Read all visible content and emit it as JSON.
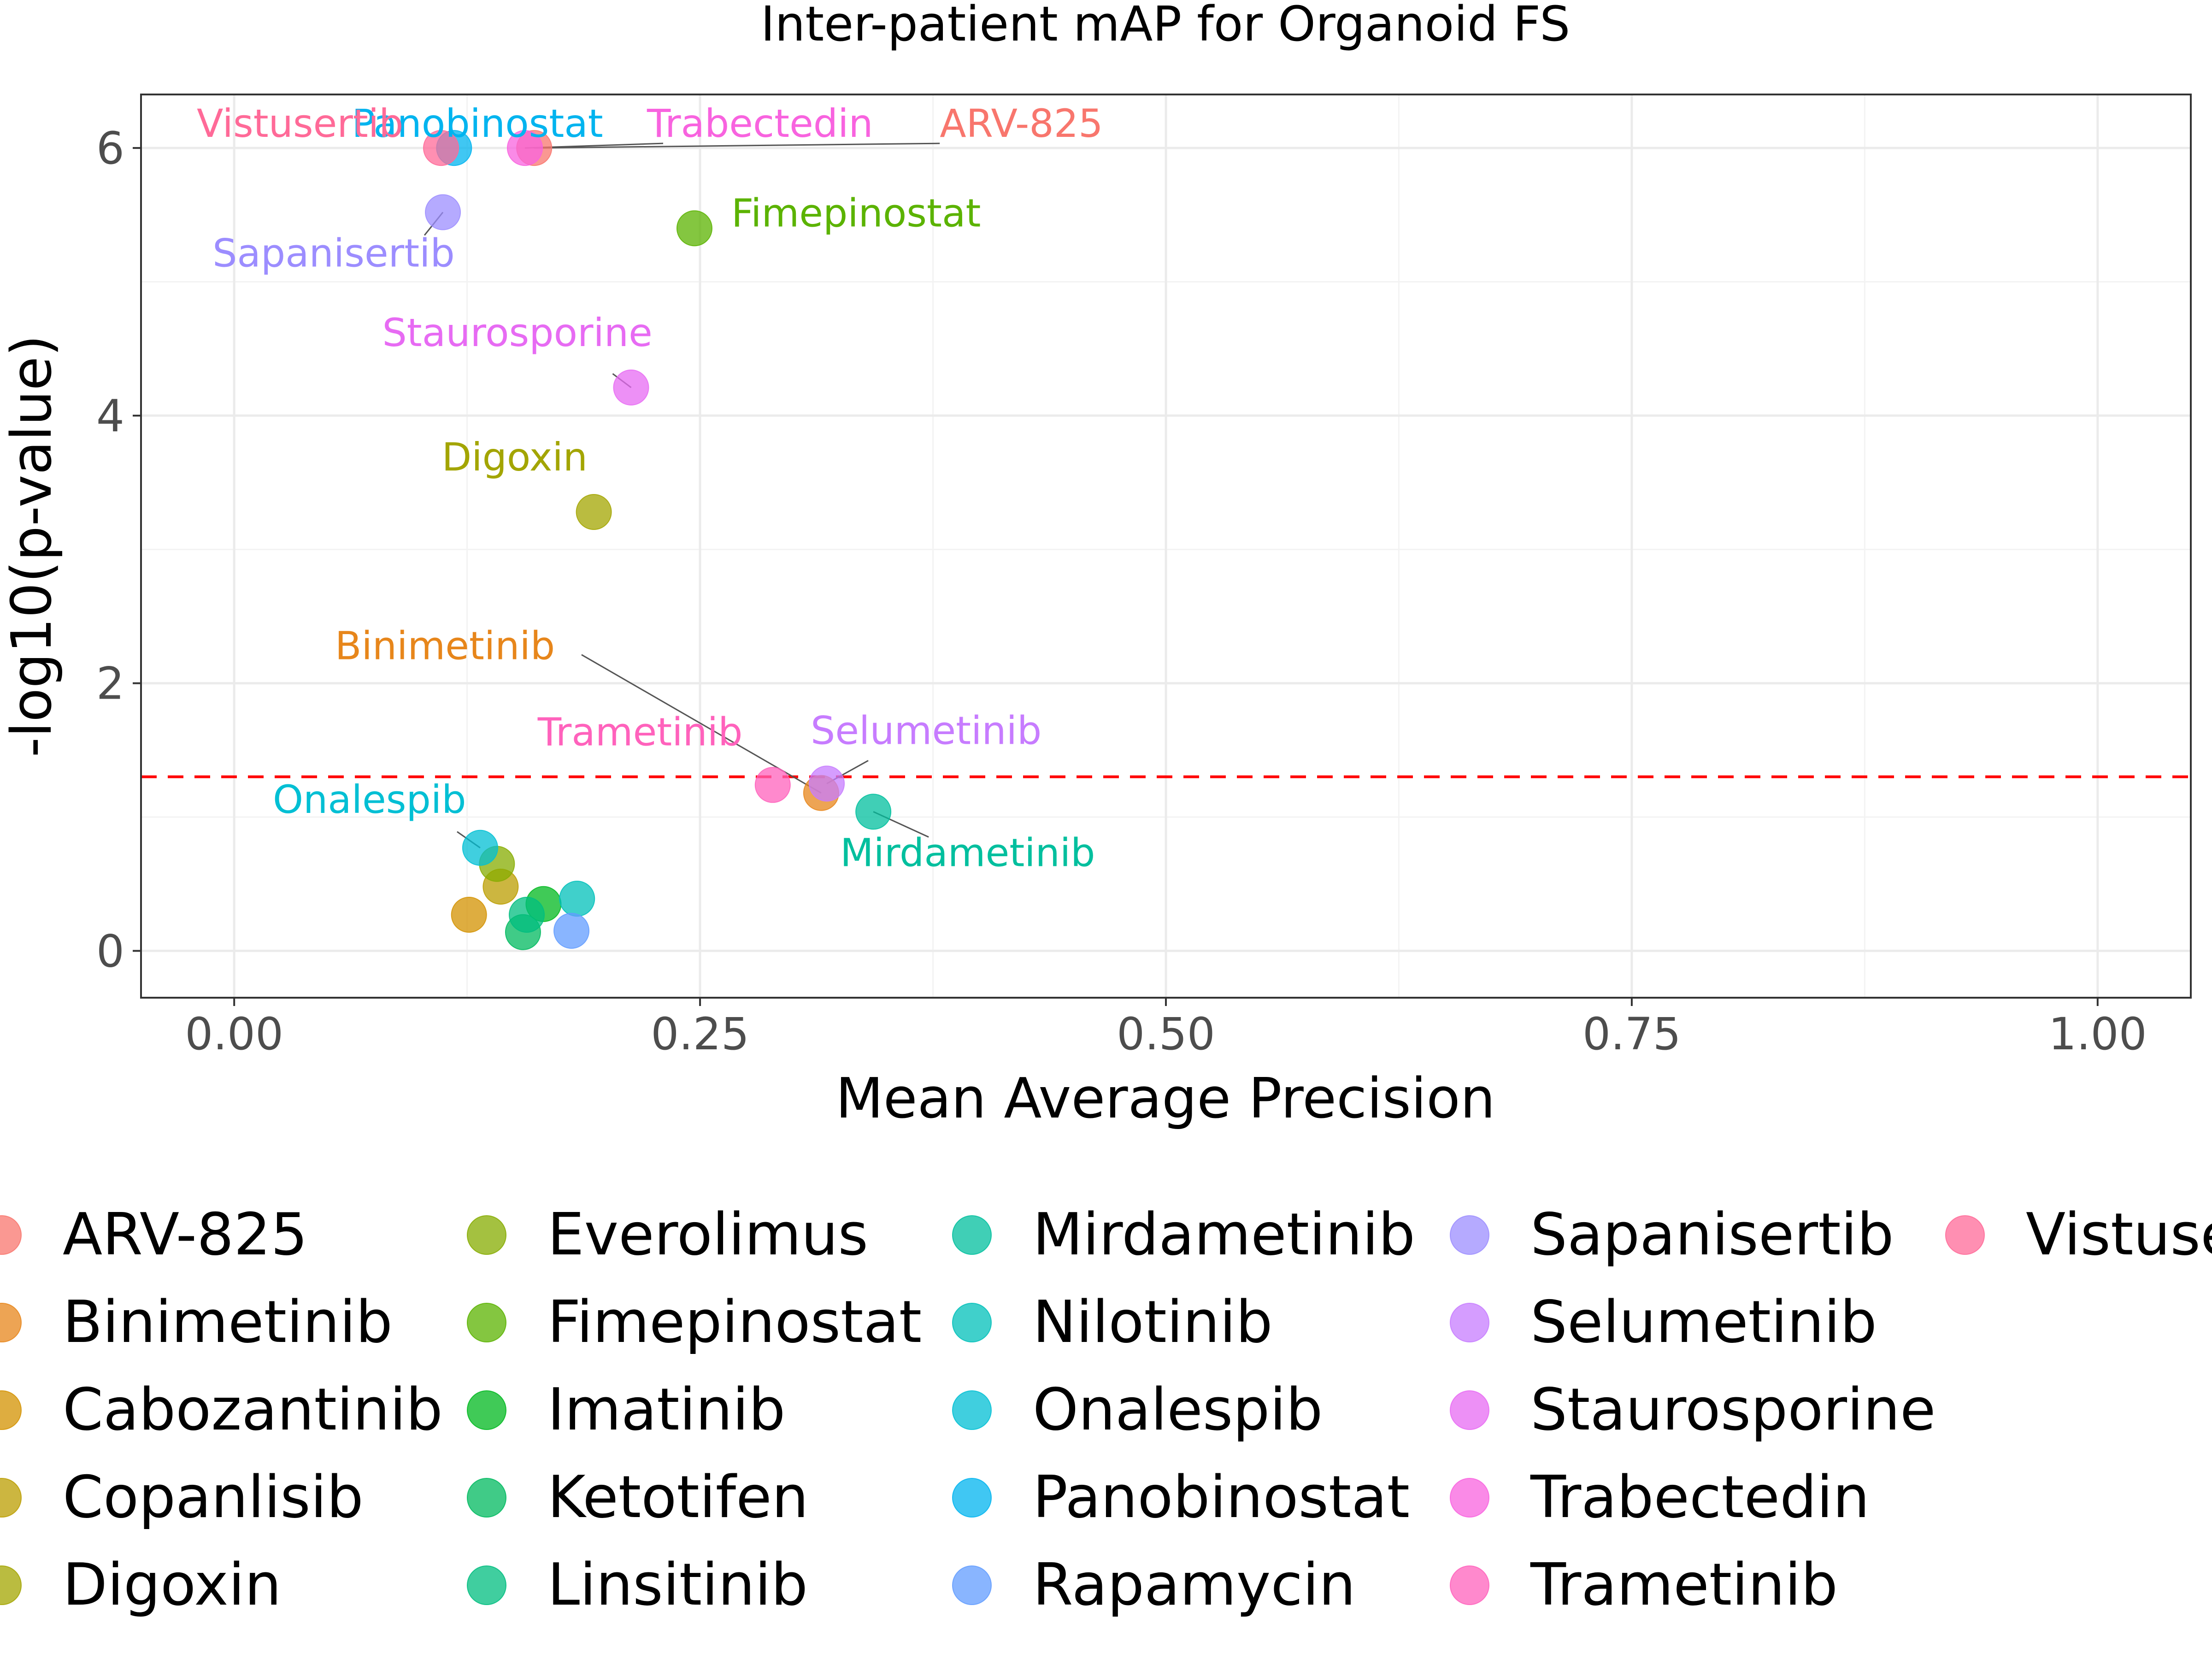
{
  "chart_data": {
    "type": "scatter",
    "title": "Inter-patient mAP for Organoid FS",
    "xlabel": "Mean Average Precision",
    "ylabel": "-log10(p-value)",
    "xlim": [
      -0.05,
      1.05
    ],
    "ylim": [
      -0.35,
      6.4
    ],
    "x_ticks": [
      0,
      0.25,
      0.5,
      0.75,
      1
    ],
    "x_tick_labels": [
      "0.00",
      "0.25",
      "0.50",
      "0.75",
      "1.00"
    ],
    "y_ticks": [
      0,
      2,
      4,
      6
    ],
    "y_tick_labels": [
      "0",
      "2",
      "4",
      "6"
    ],
    "grid": true,
    "legend_position": "bottom",
    "threshold": {
      "y": 1.301,
      "color": "#ff0000",
      "style": "dashed"
    },
    "series": [
      {
        "name": "ARV-825",
        "color": "#F8766D",
        "x": 0.161,
        "y": 6.0,
        "label": "ARV-825"
      },
      {
        "name": "Binimetinib",
        "color": "#E7861B",
        "x": 0.315,
        "y": 1.18,
        "label": "Binimetinib"
      },
      {
        "name": "Cabozantinib",
        "color": "#D39200",
        "x": 0.126,
        "y": 0.27,
        "label": ""
      },
      {
        "name": "Copanlisib",
        "color": "#BB9D00",
        "x": 0.143,
        "y": 0.48,
        "label": ""
      },
      {
        "name": "Digoxin",
        "color": "#A3A500",
        "x": 0.193,
        "y": 3.28,
        "label": "Digoxin"
      },
      {
        "name": "Everolimus",
        "color": "#86AC00",
        "x": 0.141,
        "y": 0.65,
        "label": ""
      },
      {
        "name": "Fimepinostat",
        "color": "#5BB300",
        "x": 0.247,
        "y": 5.4,
        "label": "Fimepinostat"
      },
      {
        "name": "Imatinib",
        "color": "#00B81F",
        "x": 0.166,
        "y": 0.35,
        "label": ""
      },
      {
        "name": "Ketotifen",
        "color": "#00BA5F",
        "x": 0.155,
        "y": 0.14,
        "label": ""
      },
      {
        "name": "Linsitinib",
        "color": "#00BD7F",
        "x": 0.157,
        "y": 0.27,
        "label": ""
      },
      {
        "name": "Mirdametinib",
        "color": "#00BF9E",
        "x": 0.343,
        "y": 1.04,
        "label": "Mirdametinib"
      },
      {
        "name": "Nilotinib",
        "color": "#00C0BA",
        "x": 0.184,
        "y": 0.39,
        "label": ""
      },
      {
        "name": "Onalespib",
        "color": "#00BFD4",
        "x": 0.132,
        "y": 0.77,
        "label": "Onalespib"
      },
      {
        "name": "Panobinostat",
        "color": "#00B4EF",
        "x": 0.118,
        "y": 6.0,
        "label": "Panobinostat"
      },
      {
        "name": "Rapamycin",
        "color": "#619CFF",
        "x": 0.181,
        "y": 0.15,
        "label": ""
      },
      {
        "name": "Sapanisertib",
        "color": "#9C8DFF",
        "x": 0.112,
        "y": 5.52,
        "label": "Sapanisertib"
      },
      {
        "name": "Selumetinib",
        "color": "#C77CFF",
        "x": 0.318,
        "y": 1.25,
        "label": "Selumetinib"
      },
      {
        "name": "Staurosporine",
        "color": "#E76BF3",
        "x": 0.213,
        "y": 4.21,
        "label": "Staurosporine"
      },
      {
        "name": "Trabectedin",
        "color": "#F863DF",
        "x": 0.156,
        "y": 6.0,
        "label": "Trabectedin"
      },
      {
        "name": "Trametinib",
        "color": "#FF62BC",
        "x": 0.289,
        "y": 1.24,
        "label": "Trametinib"
      },
      {
        "name": "Vistusertib",
        "color": "#FF6A98",
        "x": 0.111,
        "y": 6.0,
        "label": "Vistusertib"
      }
    ]
  }
}
